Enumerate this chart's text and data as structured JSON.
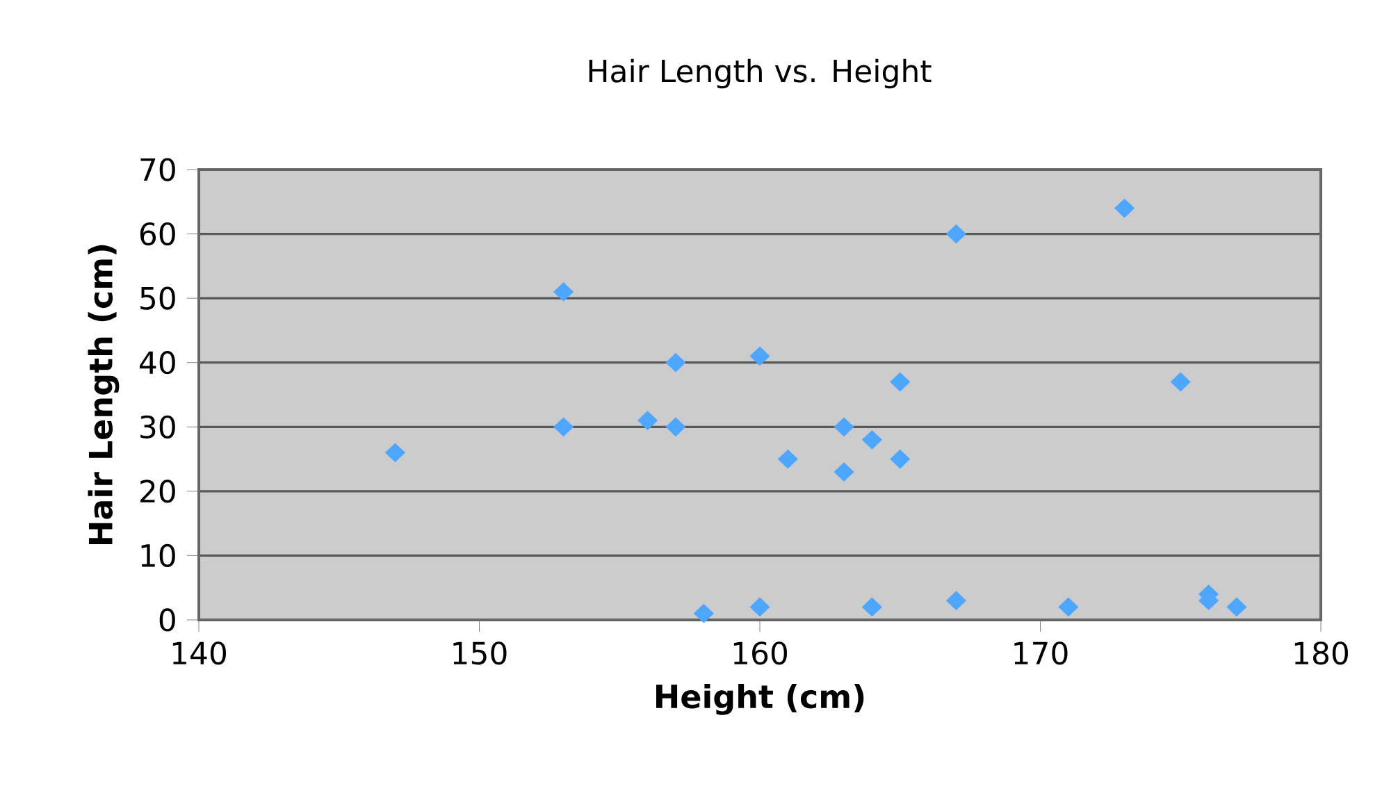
{
  "chart_data": {
    "type": "scatter",
    "title": "Hair Length vs. Height",
    "xlabel": "Height (cm)",
    "ylabel": "Hair Length (cm)",
    "x": [
      147,
      153,
      153,
      156,
      157,
      157,
      158,
      160,
      160,
      161,
      163,
      163,
      164,
      164,
      165,
      165,
      167,
      167,
      171,
      173,
      175,
      176,
      176,
      177
    ],
    "series": [
      {
        "color": "#4da6ff",
        "values": [
          26,
          51,
          30,
          31,
          40,
          30,
          1,
          41,
          2,
          25,
          30,
          23,
          28,
          2,
          37,
          25,
          60,
          3,
          2,
          64,
          37,
          4,
          3,
          2
        ]
      }
    ],
    "xlim": [
      140,
      180
    ],
    "xticks": [
      140,
      150,
      160,
      170,
      180
    ],
    "ylim": [
      0,
      70
    ],
    "yticks": [
      0,
      10,
      20,
      30,
      40,
      50,
      60,
      70
    ],
    "grid": "y",
    "marker": "diamond"
  }
}
